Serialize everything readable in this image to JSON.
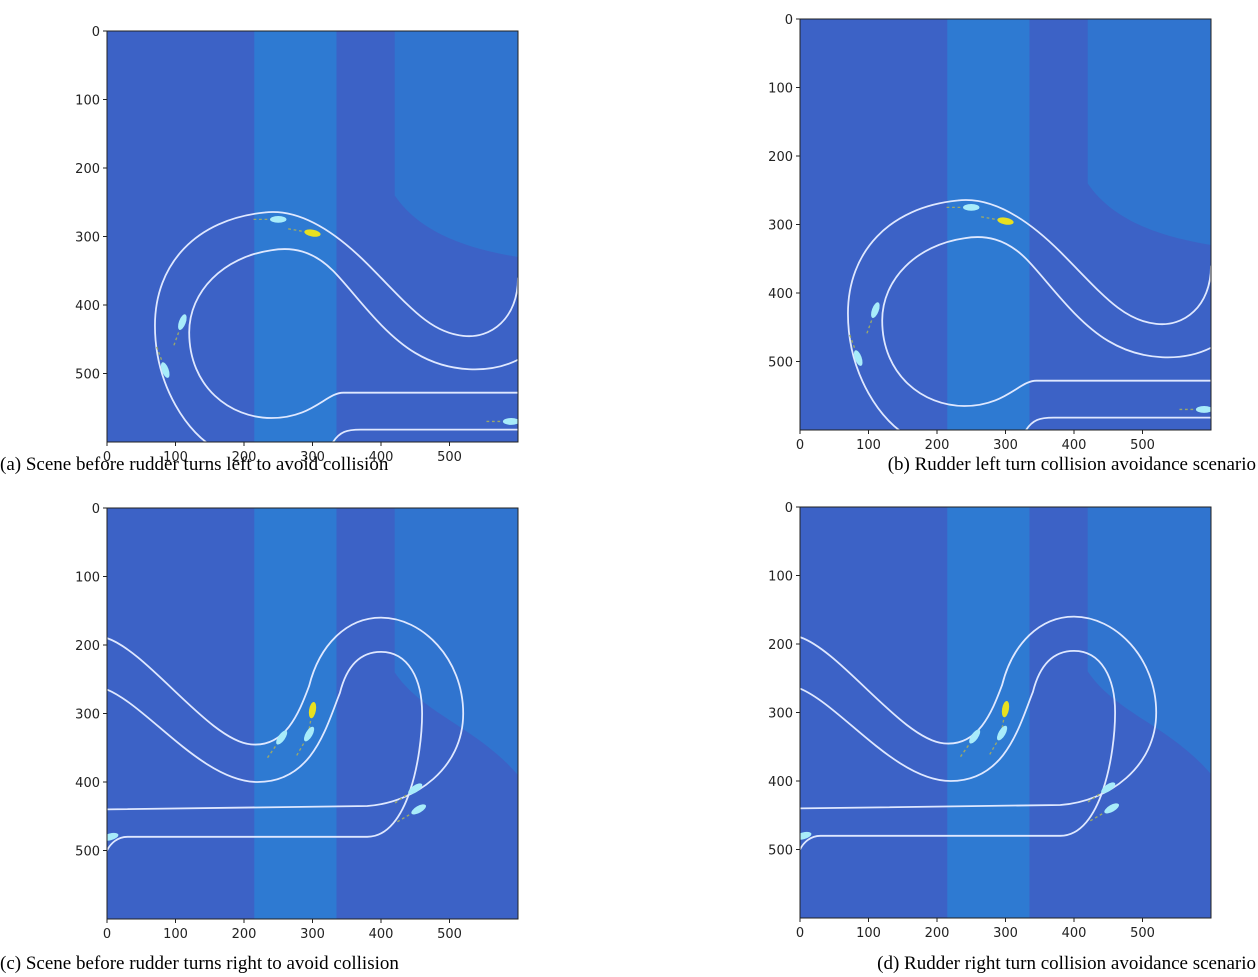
{
  "panels": [
    {
      "caption": "(a) Scene before rudder turns left to avoid collision",
      "xticks": [
        0,
        100,
        200,
        300,
        400,
        500
      ],
      "yticks": [
        0,
        100,
        200,
        300,
        400,
        500
      ]
    },
    {
      "caption": "(b) Rudder left turn collision avoidance scenario",
      "xticks": [
        0,
        100,
        200,
        300,
        400,
        500
      ],
      "yticks": [
        0,
        100,
        200,
        300,
        400,
        500
      ]
    },
    {
      "caption": "(c) Scene before rudder turns right to avoid collision",
      "xticks": [
        0,
        100,
        200,
        300,
        400,
        500
      ],
      "yticks": [
        0,
        100,
        200,
        300,
        400,
        500
      ]
    },
    {
      "caption": "(d) Rudder right turn collision avoidance scenario",
      "xticks": [
        0,
        100,
        200,
        300,
        400,
        500
      ],
      "yticks": [
        0,
        100,
        200,
        300,
        400,
        500
      ]
    }
  ]
}
